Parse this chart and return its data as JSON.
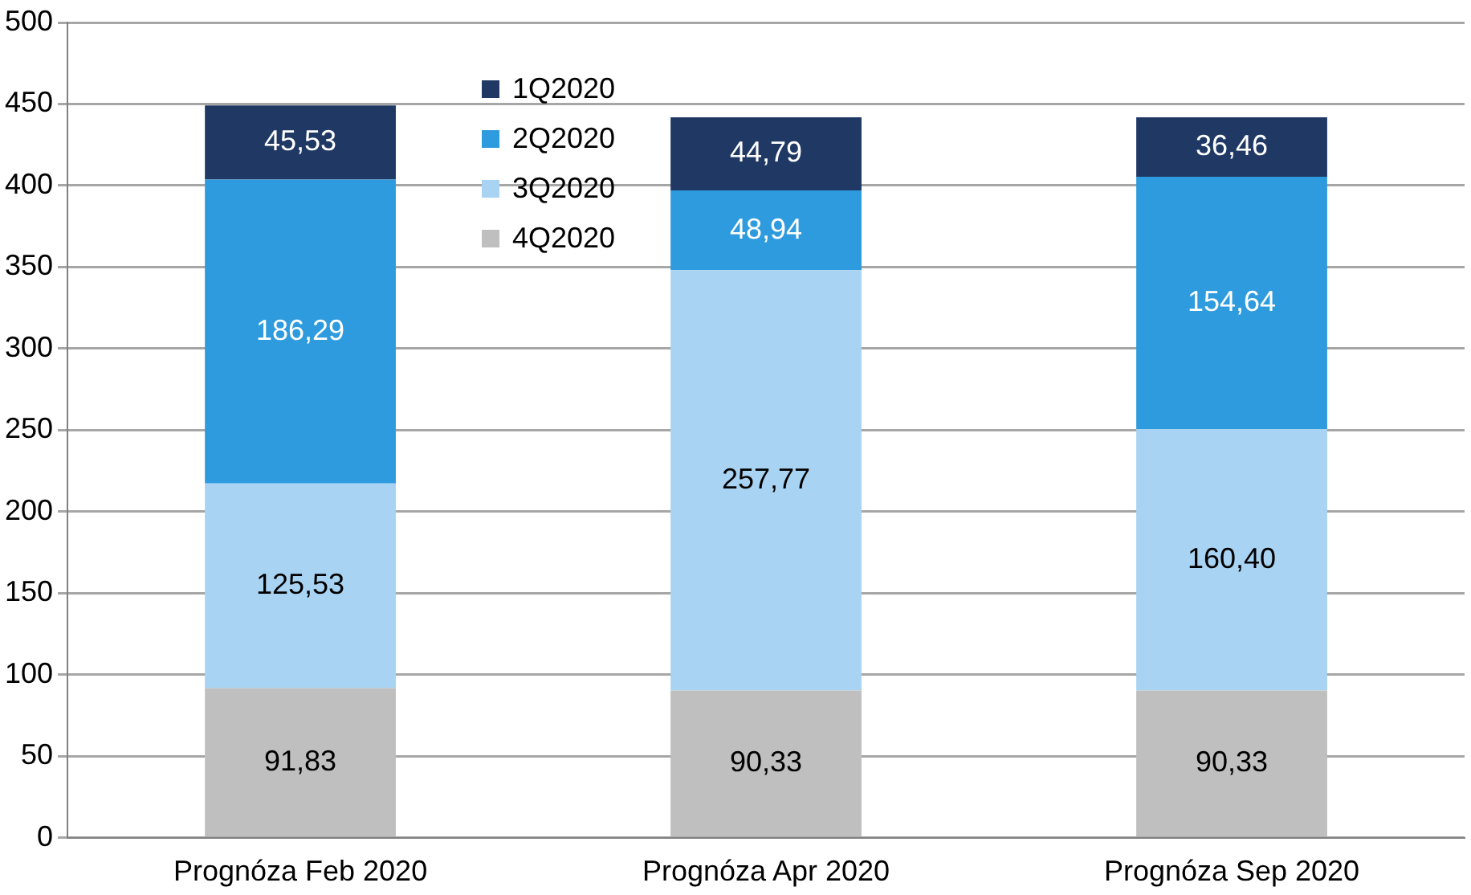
{
  "chart_data": {
    "type": "bar",
    "stacked": true,
    "categories": [
      "Prognóza Feb 2020",
      "Prognóza Apr 2020",
      "Prognóza Sep 2020"
    ],
    "series": [
      {
        "name": "4Q2020",
        "color": "#bfbfbf",
        "values": [
          91.83,
          90.33,
          90.33
        ],
        "value_labels": [
          "91,83",
          "90,33",
          "90,33"
        ]
      },
      {
        "name": "3Q2020",
        "color": "#a9d3f2",
        "values": [
          125.53,
          257.77,
          160.4
        ],
        "value_labels": [
          "125,53",
          "257,77",
          "160,40"
        ]
      },
      {
        "name": "2Q2020",
        "color": "#2e9bde",
        "values": [
          186.29,
          48.94,
          154.64
        ],
        "value_labels": [
          "186,29",
          "48,94",
          "154,64"
        ]
      },
      {
        "name": "1Q2020",
        "color": "#1f3864",
        "values": [
          45.53,
          44.79,
          36.46
        ],
        "value_labels": [
          "45,53",
          "44,79",
          "36,46"
        ]
      }
    ],
    "ylim": [
      0,
      500
    ],
    "yticks": [
      0,
      50,
      100,
      150,
      200,
      250,
      300,
      350,
      400,
      450,
      500
    ],
    "grid": "y",
    "legend": "top left"
  }
}
